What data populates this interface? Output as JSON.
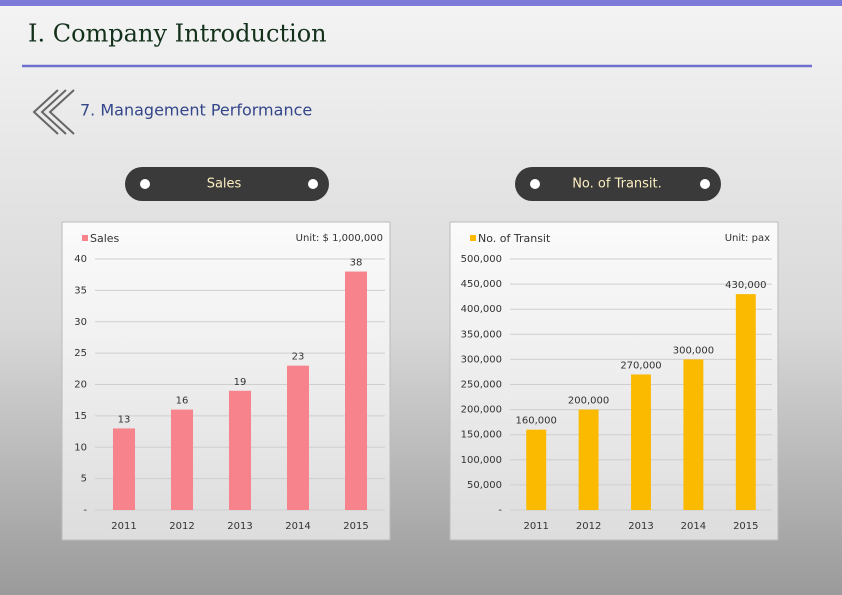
{
  "header": {
    "title": "Ⅰ. Company Introduction",
    "subtitle": "7. Management Performance",
    "panels": [
      "Sales",
      "No. of Transit."
    ]
  },
  "chart_data": [
    {
      "type": "bar",
      "annotation": "Unit: $ 1,000,000",
      "categories": [
        "2011",
        "2012",
        "2013",
        "2014",
        "2015"
      ],
      "series": [
        {
          "name": "Sales",
          "color": "#f7848c",
          "values": [
            13,
            16,
            19,
            23,
            38
          ]
        }
      ],
      "ylim": [
        0,
        40
      ],
      "yticks": [
        {
          "value": 0,
          "label": "-"
        },
        5,
        10,
        15,
        20,
        25,
        30,
        35,
        40
      ]
    },
    {
      "type": "bar",
      "annotation": "Unit: pax",
      "categories": [
        "2011",
        "2012",
        "2013",
        "2014",
        "2015"
      ],
      "series": [
        {
          "name": "No. of Transit",
          "color": "#fbb900",
          "values": [
            160000,
            200000,
            270000,
            300000,
            430000
          ],
          "value_labels": [
            "160,000",
            "200,000",
            "270,000",
            "300,000",
            "430,000"
          ]
        }
      ],
      "ylim": [
        0,
        500000
      ],
      "yticks": [
        {
          "value": 0,
          "label": "-"
        },
        {
          "value": 50000,
          "label": "50,000"
        },
        {
          "value": 100000,
          "label": "100,000"
        },
        {
          "value": 150000,
          "label": "150,000"
        },
        {
          "value": 200000,
          "label": "200,000"
        },
        {
          "value": 250000,
          "label": "250,000"
        },
        {
          "value": 300000,
          "label": "300,000"
        },
        {
          "value": 350000,
          "label": "350,000"
        },
        {
          "value": 400000,
          "label": "400,000"
        },
        {
          "value": 450000,
          "label": "450,000"
        },
        {
          "value": 500000,
          "label": "500,000"
        }
      ]
    }
  ]
}
